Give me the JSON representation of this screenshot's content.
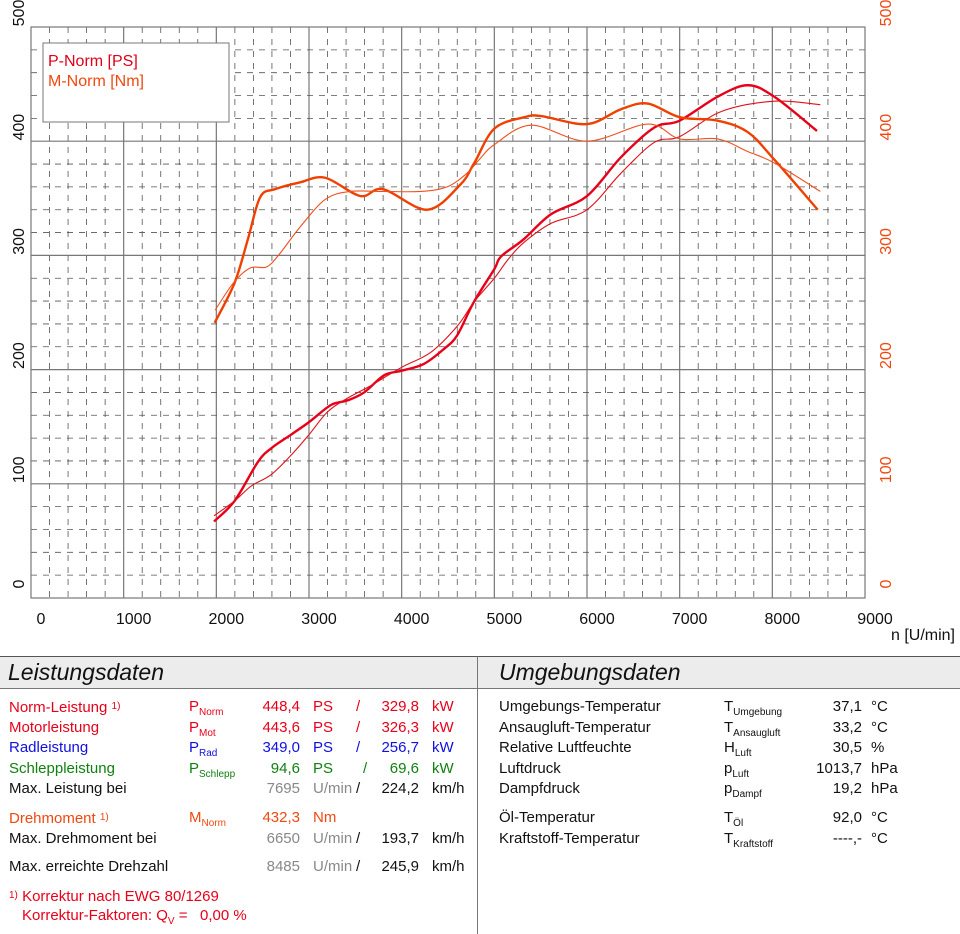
{
  "chart_data": {
    "type": "line",
    "xlabel": "n [U/min]",
    "x_ticks": [
      "0",
      "1000",
      "2000",
      "3000",
      "4000",
      "5000",
      "6000",
      "7000",
      "8000",
      "9000"
    ],
    "y_ticks_left": [
      "0",
      "100",
      "200",
      "300",
      "400",
      "500"
    ],
    "y_ticks_right": [
      "0",
      "100",
      "200",
      "300",
      "400",
      "500"
    ],
    "xlim": [
      0,
      9000
    ],
    "ylim": [
      0,
      500
    ],
    "grid": true,
    "legend_placement": "top-left",
    "legend": [
      {
        "label": "P-Norm [PS]",
        "color": "#e0001a"
      },
      {
        "label": "M-Norm [Nm]",
        "color": "#f04810"
      }
    ],
    "series": [
      {
        "color": "#e8001a",
        "style": "thick",
        "x": [
          1975,
          2197,
          2448,
          2591,
          2806,
          3000,
          3237,
          3416,
          3595,
          3810,
          4000,
          4240,
          4455,
          4599,
          4778,
          5000,
          5072,
          5315,
          5611,
          6000,
          6367,
          6727,
          7000,
          7410,
          7734,
          8020,
          8482
        ],
        "y": [
          67,
          85,
          119,
          131,
          143,
          154,
          169,
          173,
          180,
          195,
          199,
          205,
          218,
          230,
          259,
          288,
          299,
          314,
          336,
          352,
          386,
          412,
          418,
          439,
          449,
          439,
          409
        ]
      },
      {
        "color": "#e0101a",
        "style": "thin",
        "x": [
          1975,
          2197,
          2376,
          2591,
          2806,
          3000,
          3200,
          3416,
          3667,
          4000,
          4312,
          4599,
          4778,
          5000,
          5144,
          5315,
          5611,
          6000,
          6367,
          6727,
          7000,
          7450,
          8020,
          8518
        ],
        "y": [
          72,
          85,
          98,
          108,
          125,
          143,
          163,
          175,
          186,
          202,
          215,
          238,
          259,
          280,
          296,
          311,
          328,
          340,
          372,
          399,
          404,
          426,
          435,
          432
        ]
      },
      {
        "color": "#f04000",
        "style": "thick",
        "x": [
          1982,
          2197,
          2340,
          2473,
          2635,
          2905,
          3175,
          3553,
          3801,
          4276,
          4633,
          4784,
          5000,
          5324,
          5504,
          6000,
          6367,
          6655,
          7000,
          7410,
          7734,
          8020,
          8490
        ],
        "y": [
          241,
          276,
          314,
          351,
          358,
          364,
          368,
          352,
          358,
          340,
          362,
          381,
          411,
          421,
          422,
          415,
          428,
          433,
          421,
          418,
          408,
          384,
          340
        ]
      },
      {
        "color": "#f05020",
        "style": "thin",
        "x": [
          1987,
          2185,
          2365,
          2545,
          2689,
          2905,
          3175,
          3445,
          3801,
          4200,
          4489,
          4705,
          4849,
          5000,
          5396,
          6000,
          6655,
          7000,
          7410,
          7734,
          8020,
          8518
        ],
        "y": [
          252,
          276,
          289,
          290,
          302,
          325,
          349,
          356,
          356,
          356,
          360,
          372,
          385,
          397,
          414,
          400,
          415,
          402,
          402,
          391,
          381,
          356
        ]
      }
    ]
  },
  "leistungsdaten": {
    "title": "Leistungsdaten",
    "rows": [
      {
        "label": "Norm-Leistung",
        "note": "1)",
        "sym": "P",
        "sub": "Norm",
        "v1": "448,4",
        "u1": "PS",
        "sep": "/",
        "v2": "329,8",
        "u2": "kW",
        "color": "#e8001a"
      },
      {
        "label": "Motorleistung",
        "note": "",
        "sym": "P",
        "sub": "Mot",
        "v1": "443,6",
        "u1": "PS",
        "sep": "/",
        "v2": "326,3",
        "u2": "kW",
        "color": "#e8001a"
      },
      {
        "label": "Radleistung",
        "note": "",
        "sym": "P",
        "sub": "Rad",
        "v1": "349,0",
        "u1": "PS",
        "sep": "/",
        "v2": "256,7",
        "u2": "kW",
        "color": "#1010e0"
      },
      {
        "label": "Schleppleistung",
        "note": "",
        "sym": "P",
        "sub": "Schlepp",
        "v1": "94,6",
        "u1": "PS",
        "sep": "/",
        "v2": "69,6",
        "u2": "kW",
        "color": "#108010"
      }
    ],
    "max_power": {
      "label": "Max. Leistung bei",
      "rpm": "7695",
      "rpm_unit": "U/min",
      "sep": "/",
      "speed": "224,2",
      "speed_unit": "km/h"
    },
    "torque": {
      "label": "Drehmoment",
      "note": "1)",
      "sym": "M",
      "sub": "Norm",
      "value": "432,3",
      "unit": "Nm",
      "color": "#f04810"
    },
    "max_torque": {
      "label": "Max. Drehmoment bei",
      "rpm": "6650",
      "rpm_unit": "U/min",
      "sep": "/",
      "speed": "193,7",
      "speed_unit": "km/h"
    },
    "max_rpm": {
      "label": "Max. erreichte Drehzahl",
      "rpm": "8485",
      "rpm_unit": "U/min",
      "sep": "/",
      "speed": "245,9",
      "speed_unit": "km/h"
    },
    "footnote1_mark": "1)",
    "footnote1": "Korrektur nach EWG 80/1269",
    "footnote2_prefix": "Korrektur-Faktoren: Q",
    "footnote2_sub": "V",
    "footnote2_value": " =   0,00 %"
  },
  "umgebungsdaten": {
    "title": "Umgebungsdaten",
    "rows": [
      {
        "label": "Umgebungs-Temperatur",
        "sym": "T",
        "sub": "Umgebung",
        "value": "37,1",
        "unit": "°C"
      },
      {
        "label": "Ansaugluft-Temperatur",
        "sym": "T",
        "sub": "Ansaugluft",
        "value": "33,2",
        "unit": "°C"
      },
      {
        "label": "Relative Luftfeuchte",
        "sym": "H",
        "sub": "Luft",
        "value": "30,5",
        "unit": "%"
      },
      {
        "label": "Luftdruck",
        "sym": "p",
        "sub": "Luft",
        "value": "1013,7",
        "unit": "hPa"
      },
      {
        "label": "Dampfdruck",
        "sym": "p",
        "sub": "Dampf",
        "value": "19,2",
        "unit": "hPa"
      },
      {
        "label": "Öl-Temperatur",
        "sym": "T",
        "sub": "Öl",
        "value": "92,0",
        "unit": "°C"
      },
      {
        "label": "Kraftstoff-Temperatur",
        "sym": "T",
        "sub": "Kraftstoff",
        "value": "----,-",
        "unit": "°C"
      }
    ]
  }
}
